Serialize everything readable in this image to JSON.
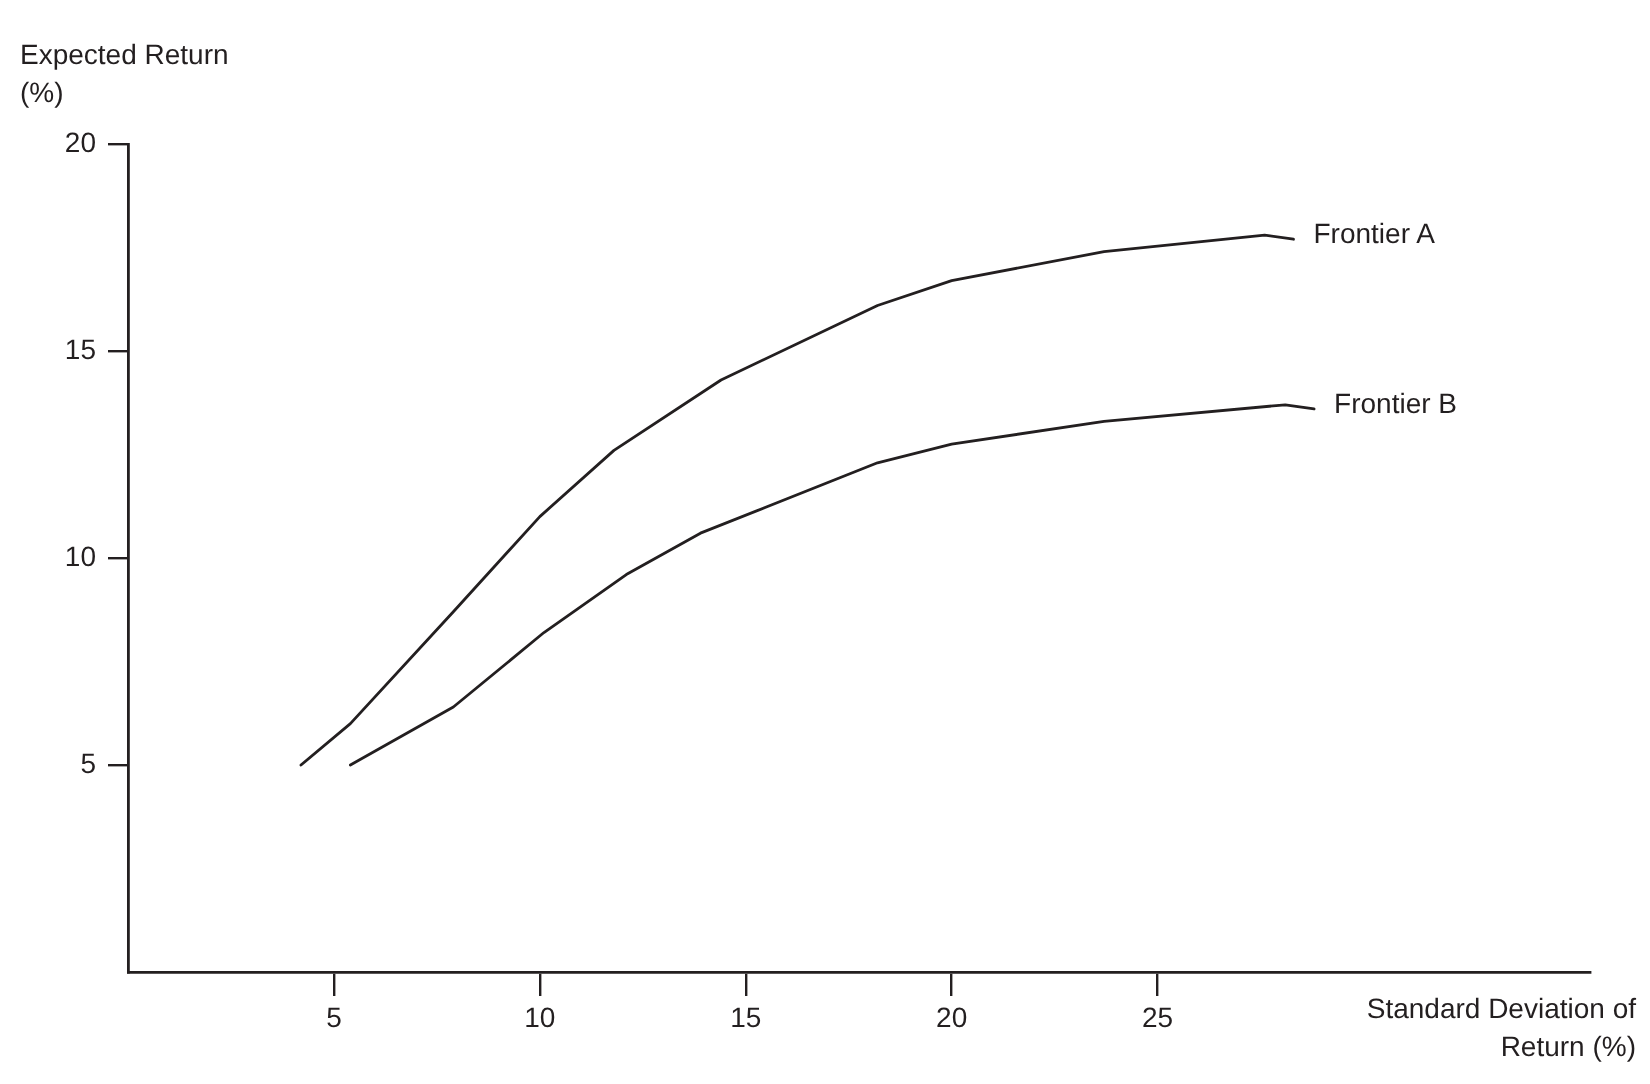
{
  "chart_data": {
    "type": "line",
    "xlabel": "Standard Deviation of Return (%)",
    "ylabel": "Expected Return (%)",
    "xlim": [
      0,
      35.5
    ],
    "xticks": [
      5,
      10,
      15,
      20,
      25
    ],
    "ylim": [
      0,
      20
    ],
    "yticks": [
      5,
      10,
      15,
      20
    ],
    "grid": false,
    "legend": false,
    "marker": "none",
    "line_style": "solid",
    "series": [
      {
        "name": "Frontier A",
        "color": "#231f20",
        "x": [
          4.2,
          5.4,
          7.9,
          10.0,
          11.8,
          14.4,
          18.2,
          20.0,
          23.7,
          27.6,
          28.3
        ],
        "values": [
          5,
          6.0,
          8.7,
          11.0,
          12.6,
          14.3,
          16.1,
          16.7,
          17.4,
          17.8,
          17.7
        ]
      },
      {
        "name": "Frontier B",
        "color": "#231f20",
        "x": [
          5.4,
          7.9,
          10.1,
          12.1,
          13.9,
          18.2,
          20.0,
          23.7,
          28.1,
          28.8
        ],
        "values": [
          5,
          6.4,
          8.2,
          9.6,
          10.6,
          12.3,
          12.75,
          13.3,
          13.7,
          13.6
        ]
      }
    ]
  }
}
